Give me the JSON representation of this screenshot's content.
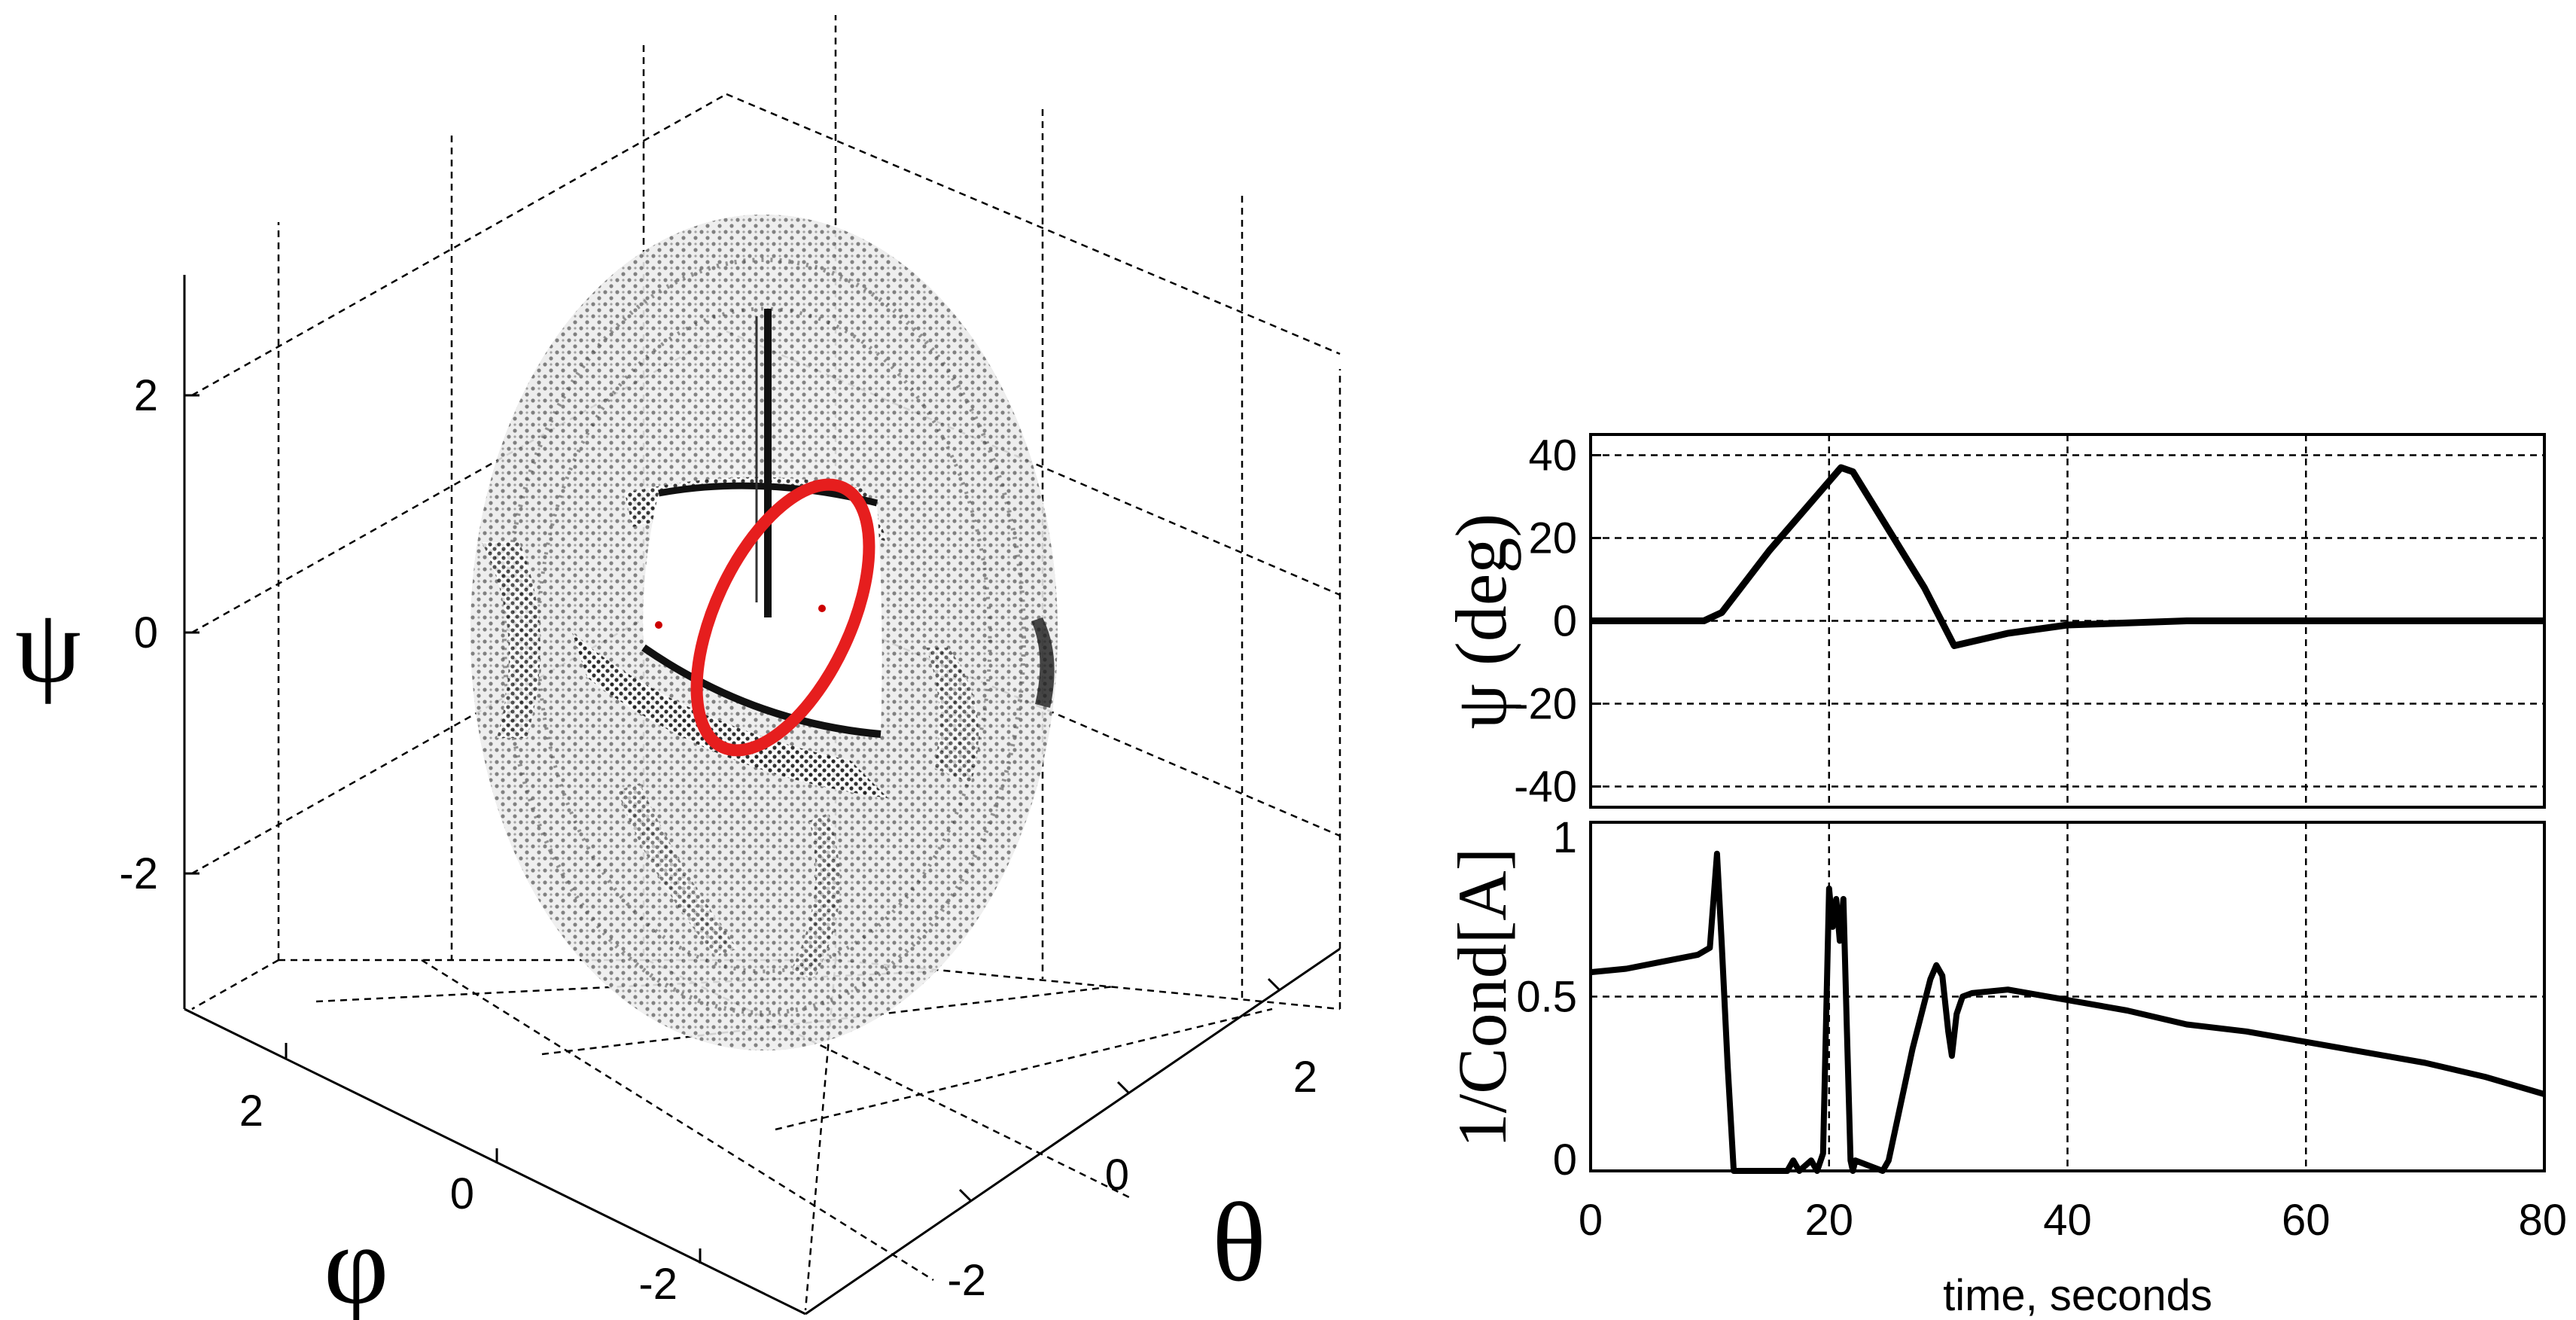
{
  "chart_data": [
    {
      "type": "scatter",
      "subtype": "3d-torus-point-cloud",
      "title": "",
      "xlabel": "θ",
      "ylabel": "φ",
      "zlabel": "ψ",
      "xticks": [
        "-2",
        "0",
        "2"
      ],
      "yticks": [
        "-2",
        "0",
        "2"
      ],
      "zticks": [
        "-2",
        "0",
        "2"
      ],
      "xlim": [
        -3,
        3
      ],
      "ylim": [
        -3,
        3
      ],
      "zlim": [
        -3,
        3
      ],
      "grid": true,
      "series": [
        {
          "name": "torus surface points",
          "color": "#808080"
        },
        {
          "name": "singular set points",
          "color": "#000000"
        },
        {
          "name": "trajectory",
          "color": "#e61e1e"
        }
      ]
    },
    {
      "type": "line",
      "title": "",
      "xlabel": "",
      "ylabel": "ψ (deg)",
      "xlim": [
        0,
        80
      ],
      "ylim": [
        -45,
        45
      ],
      "yticks": [
        "40",
        "20",
        "0",
        "-20",
        "-40"
      ],
      "yticks_values": [
        40,
        20,
        0,
        -20,
        -40
      ],
      "grid": true,
      "series": [
        {
          "name": "psi",
          "color": "#000000",
          "x": [
            0,
            5,
            9.5,
            11,
            15,
            21,
            22,
            25,
            28,
            30.5,
            32,
            35,
            40,
            50,
            60,
            70,
            80
          ],
          "y": [
            0,
            0,
            0,
            2,
            17,
            37,
            36,
            22,
            8,
            -6,
            -5,
            -3,
            -1,
            0,
            0,
            0,
            0
          ]
        }
      ]
    },
    {
      "type": "line",
      "title": "",
      "xlabel": "time, seconds",
      "ylabel": "1/Cond[A]",
      "xlim": [
        0,
        80
      ],
      "ylim": [
        0,
        1
      ],
      "xticks": [
        "0",
        "20",
        "40",
        "60",
        "80"
      ],
      "xticks_values": [
        0,
        20,
        40,
        60,
        80
      ],
      "yticks": [
        "1",
        "0.5",
        "0"
      ],
      "yticks_values": [
        1,
        0.5,
        0
      ],
      "grid": true,
      "series": [
        {
          "name": "inverse condition number",
          "color": "#000000",
          "x": [
            0,
            3,
            6,
            9,
            10,
            10.6,
            11,
            11.5,
            12,
            12.5,
            16.5,
            17,
            17.5,
            18.5,
            19,
            19.5,
            20,
            20.3,
            20.6,
            20.9,
            21.2,
            21.5,
            21.8,
            22,
            22.2,
            24.5,
            25,
            27,
            28.5,
            29,
            29.5,
            30,
            30.3,
            30.7,
            31.2,
            32,
            35,
            40,
            45,
            50,
            55,
            60,
            65,
            70,
            75,
            80
          ],
          "y": [
            0.57,
            0.58,
            0.6,
            0.62,
            0.64,
            0.91,
            0.65,
            0.3,
            0.0,
            0.0,
            0.0,
            0.03,
            0.0,
            0.03,
            0.0,
            0.05,
            0.81,
            0.7,
            0.78,
            0.66,
            0.78,
            0.4,
            0.03,
            0.0,
            0.03,
            0.0,
            0.03,
            0.35,
            0.55,
            0.59,
            0.56,
            0.4,
            0.33,
            0.45,
            0.5,
            0.51,
            0.52,
            0.49,
            0.46,
            0.42,
            0.4,
            0.37,
            0.34,
            0.31,
            0.27,
            0.22
          ]
        }
      ]
    }
  ]
}
